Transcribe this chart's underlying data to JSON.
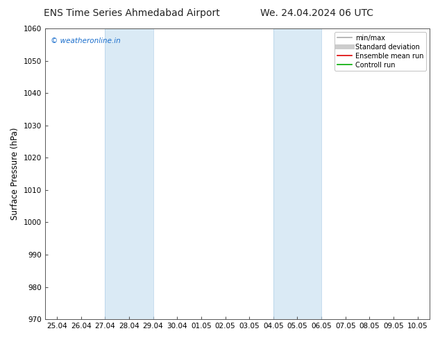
{
  "title_left": "ENS Time Series Ahmedabad Airport",
  "title_right": "We. 24.04.2024 06 UTC",
  "ylabel": "Surface Pressure (hPa)",
  "ylim": [
    970,
    1060
  ],
  "yticks": [
    970,
    980,
    990,
    1000,
    1010,
    1020,
    1030,
    1040,
    1050,
    1060
  ],
  "xtick_labels": [
    "25.04",
    "26.04",
    "27.04",
    "28.04",
    "29.04",
    "30.04",
    "01.05",
    "02.05",
    "03.05",
    "04.05",
    "05.05",
    "06.05",
    "07.05",
    "08.05",
    "09.05",
    "10.05"
  ],
  "shaded_regions": [
    {
      "xstart": 2,
      "xend": 4
    },
    {
      "xstart": 9,
      "xend": 11
    }
  ],
  "shaded_color": "#daeaf5",
  "shaded_border_color": "#b0cfe8",
  "watermark_text": "© weatheronline.in",
  "watermark_color": "#1a6ecc",
  "background_color": "#ffffff",
  "spine_color": "#555555",
  "legend_items": [
    {
      "label": "min/max",
      "color": "#aaaaaa",
      "linewidth": 1.2
    },
    {
      "label": "Standard deviation",
      "color": "#cccccc",
      "linewidth": 5
    },
    {
      "label": "Ensemble mean run",
      "color": "#dd0000",
      "linewidth": 1.2
    },
    {
      "label": "Controll run",
      "color": "#00aa00",
      "linewidth": 1.2
    }
  ],
  "title_fontsize": 10,
  "tick_fontsize": 7.5,
  "ylabel_fontsize": 8.5,
  "watermark_fontsize": 7.5,
  "legend_fontsize": 7
}
